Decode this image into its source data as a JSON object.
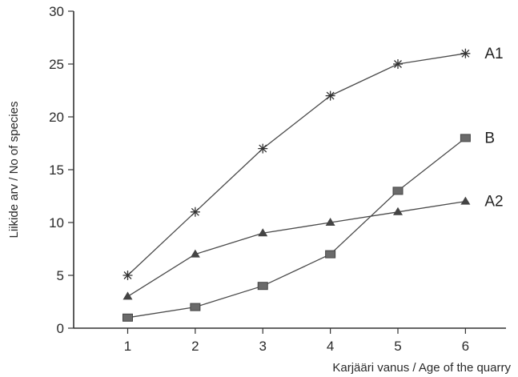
{
  "chart_data": {
    "type": "line",
    "xlabel": "Karjääri vanus / Age of the quarry",
    "ylabel": "Liikide arv / No of species",
    "x": [
      1,
      2,
      3,
      4,
      5,
      6
    ],
    "x_ticks": [
      "1",
      "2",
      "3",
      "4",
      "5",
      "6"
    ],
    "y_ticks": [
      "0",
      "5",
      "10",
      "15",
      "20",
      "25",
      "30"
    ],
    "xlim": [
      0.2,
      6.6
    ],
    "ylim": [
      0,
      30
    ],
    "grid": false,
    "legend": "inline labels at right end of each series",
    "series": [
      {
        "name": "A1",
        "marker": "star",
        "values": [
          5,
          11,
          17,
          22,
          25,
          26
        ]
      },
      {
        "name": "B",
        "marker": "square",
        "values": [
          1,
          2,
          4,
          7,
          13,
          18
        ]
      },
      {
        "name": "A2",
        "marker": "triangle",
        "values": [
          3,
          7,
          9,
          10,
          11,
          12
        ]
      }
    ]
  }
}
